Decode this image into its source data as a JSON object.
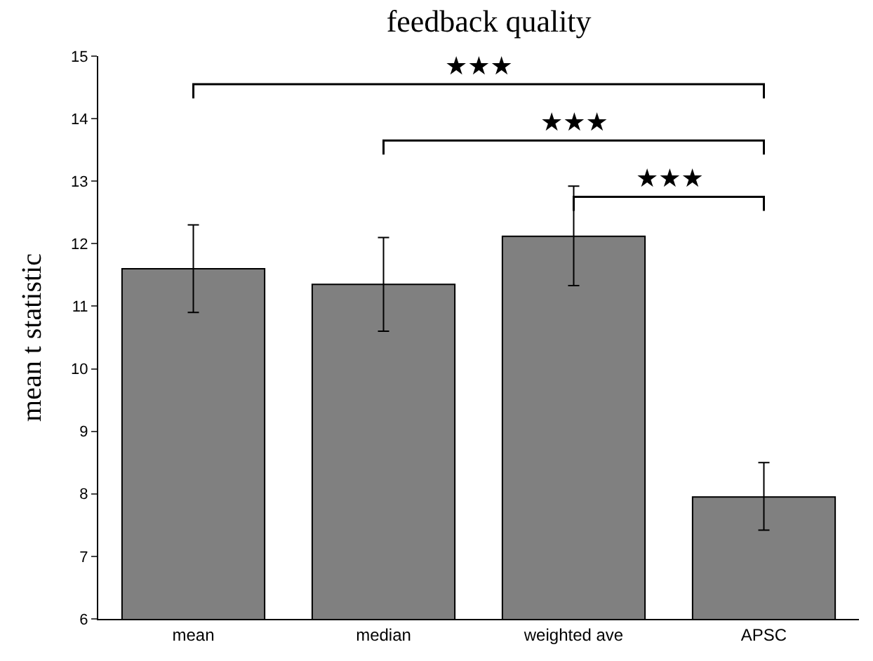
{
  "chart_data": {
    "type": "bar",
    "title": "feedback quality",
    "ylabel": "mean t statistic",
    "categories": [
      "mean",
      "median",
      "weighted ave",
      "APSC"
    ],
    "values": [
      11.6,
      11.35,
      12.12,
      7.95
    ],
    "errors": [
      [
        10.9,
        12.3
      ],
      [
        10.6,
        12.1
      ],
      [
        11.33,
        12.92
      ],
      [
        7.42,
        8.5
      ]
    ],
    "color": "#808080",
    "ylim": [
      6,
      15
    ],
    "yticks": [
      6,
      7,
      8,
      9,
      10,
      11,
      12,
      13,
      14,
      15
    ],
    "legend": false,
    "annotations": [
      "★★★",
      "★★★",
      "★★★"
    ]
  }
}
